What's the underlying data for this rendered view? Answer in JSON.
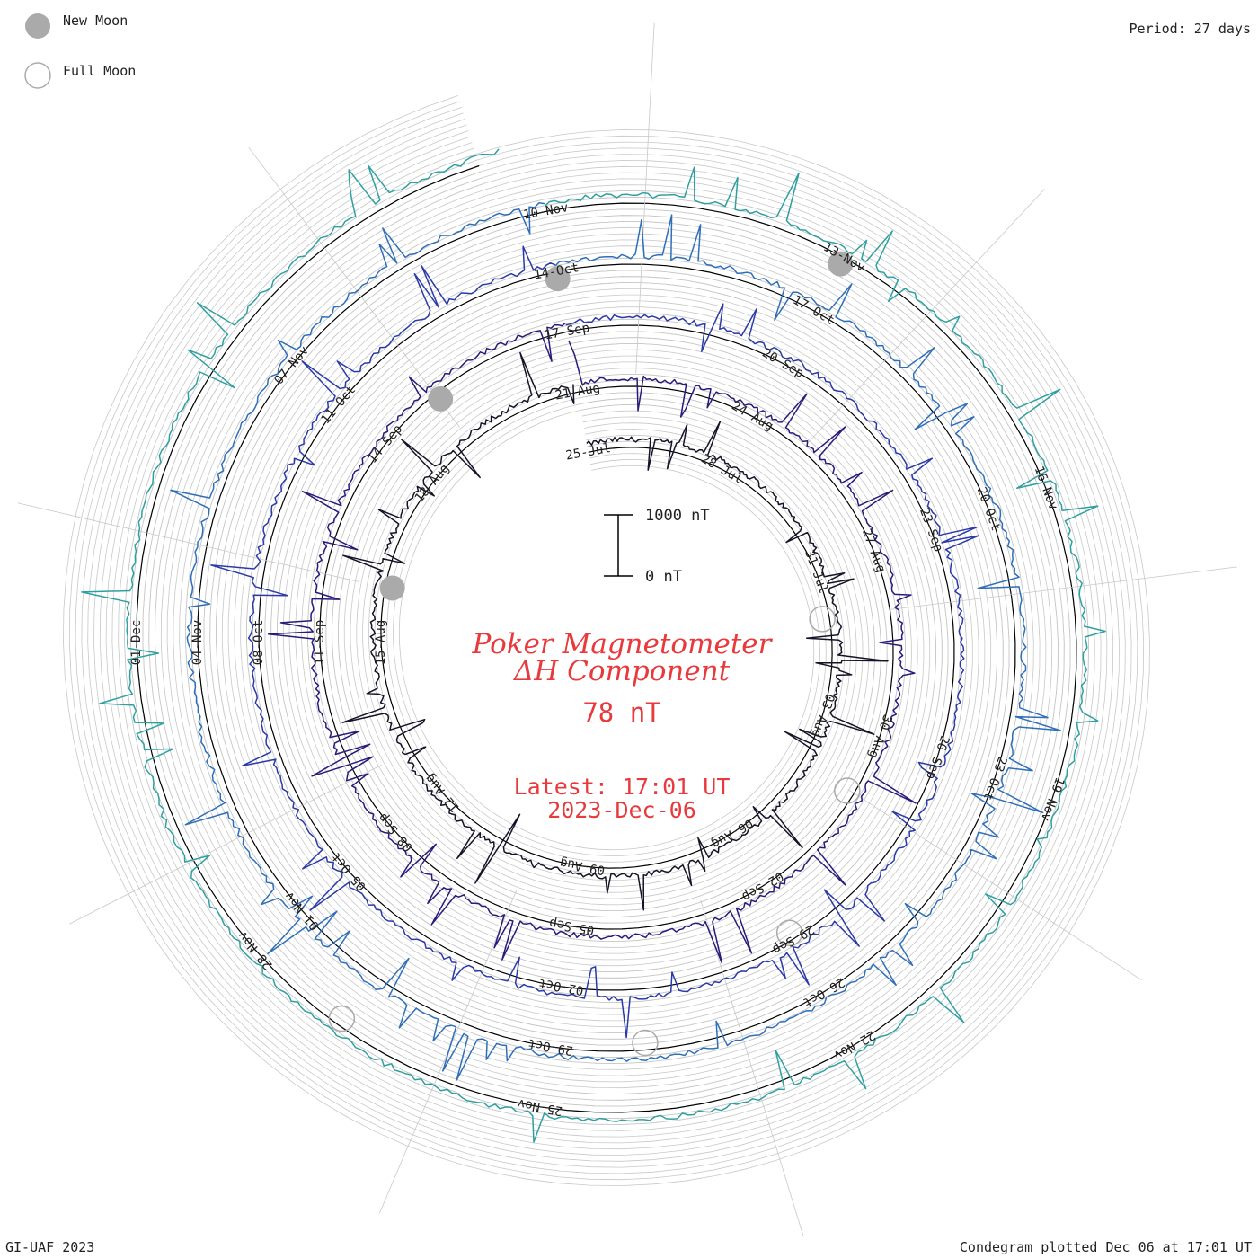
{
  "legend": {
    "new_moon": "New Moon",
    "full_moon": "Full Moon",
    "new_moon_color": "#aaaaaa",
    "full_moon_color": "#aaaaaa"
  },
  "period_label": "Period: 27 days",
  "footer": {
    "left": "GI-UAF 2023",
    "right": "Condegram plotted Dec 06 at 17:01 UT"
  },
  "center": {
    "title_line1": "Poker Magnetometer",
    "title_line2": "ΔH Component",
    "value": "78 nT",
    "latest": "Latest: 17:01 UT",
    "date": "2023-Dec-06",
    "scale_top": "1000 nT",
    "scale_bottom": "0 nT"
  },
  "chart_data": {
    "type": "line",
    "title": "Poker Magnetometer ΔH Component",
    "ylabel": "",
    "units": "nT",
    "period_days": 27,
    "scale": [
      0,
      1000
    ],
    "date_labels": [
      "25-Jul",
      "28-Jul",
      "31-Jul",
      "03-Aug",
      "06-Aug",
      "09-Aug",
      "12-Aug",
      "15-Aug",
      "18-Aug",
      "21-Aug",
      "24-Aug",
      "27-Aug",
      "30-Aug",
      "02-Sep",
      "05-Sep",
      "08-Sep",
      "11-Sep",
      "14-Sep",
      "17-Sep",
      "20-Sep",
      "23-Sep",
      "26-Sep",
      "29-Sep",
      "02-Oct",
      "05-Oct",
      "08-Oct",
      "11-Oct",
      "14-Oct",
      "17-Oct",
      "20-Oct",
      "23-Oct",
      "26-Oct",
      "29-Oct",
      "01-Nov",
      "04-Nov",
      "07-Nov",
      "10-Nov",
      "13-Nov",
      "16-Nov",
      "19-Nov",
      "22-Nov",
      "25-Nov",
      "28-Nov",
      "01-Dec"
    ],
    "series_colors": [
      "#141428",
      "#2a1a7a",
      "#2a3aa8",
      "#2f6fb8",
      "#2fa0a0",
      "#33aa66",
      "#88bb2a",
      "#b0a020",
      "#c07018",
      "#b02a20",
      "#c01818"
    ],
    "new_moons": [
      "16-Aug",
      "15-Sep",
      "14-Oct",
      "13-Nov"
    ],
    "full_moons": [
      "01-Aug",
      "31-Aug",
      "29-Sep",
      "28-Oct",
      "27-Nov"
    ],
    "latest_value": 78
  }
}
